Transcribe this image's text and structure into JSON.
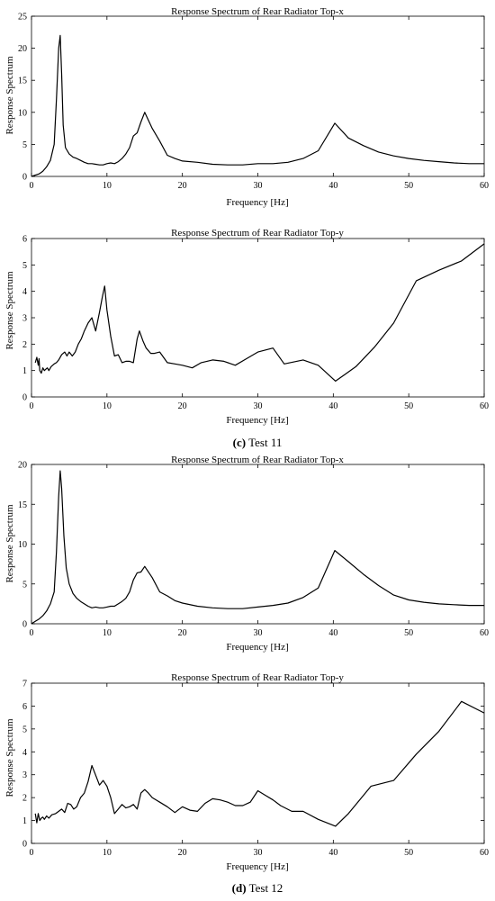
{
  "captions": [
    {
      "label": "(c)",
      "text": " Test 11"
    },
    {
      "label": "(d)",
      "text": " Test 12"
    }
  ],
  "chart_data": [
    {
      "type": "line",
      "title": "Response Spectrum of Rear Radiator Top-x",
      "xlabel": "Frequency [Hz]",
      "ylabel": "Response Spectrum",
      "xlim": [
        0,
        60
      ],
      "ylim": [
        0,
        25
      ],
      "xticks": [
        0,
        10,
        20,
        30,
        40,
        50,
        60
      ],
      "yticks": [
        0,
        5,
        10,
        15,
        20,
        25
      ],
      "grid": false,
      "series": [
        {
          "x": [
            0,
            0.5,
            1,
            1.5,
            2,
            2.5,
            3,
            3.3,
            3.6,
            3.8,
            4.0,
            4.2,
            4.5,
            5,
            5.5,
            6,
            6.5,
            7,
            7.5,
            8,
            8.5,
            9,
            9.5,
            10,
            10.5,
            11,
            11.5,
            12,
            12.5,
            13,
            13.5,
            14,
            14.5,
            15,
            16,
            17,
            18,
            19,
            20,
            22,
            24,
            26,
            28,
            30,
            32,
            34,
            36,
            38,
            40.2,
            42,
            44,
            46,
            48,
            50,
            52,
            54,
            56,
            58,
            60
          ],
          "y": [
            0,
            0.2,
            0.4,
            0.8,
            1.5,
            2.5,
            5,
            12,
            20,
            22,
            16,
            8,
            4.5,
            3.5,
            3,
            2.8,
            2.5,
            2.2,
            2,
            2,
            1.9,
            1.8,
            1.8,
            2,
            2.1,
            2,
            2.3,
            2.8,
            3.5,
            4.5,
            6.3,
            6.8,
            8.5,
            10,
            7.5,
            5.5,
            3.3,
            2.8,
            2.4,
            2.2,
            1.9,
            1.8,
            1.8,
            2,
            2,
            2.2,
            2.8,
            4,
            8.3,
            6,
            4.8,
            3.8,
            3.2,
            2.8,
            2.5,
            2.3,
            2.1,
            2,
            2
          ]
        }
      ]
    },
    {
      "type": "line",
      "title": "Response Spectrum of Rear Radiator Top-y",
      "xlabel": "Frequency [Hz]",
      "ylabel": "Response Spectrum",
      "xlim": [
        0,
        60
      ],
      "ylim": [
        0,
        6
      ],
      "xticks": [
        0,
        10,
        20,
        30,
        40,
        50,
        60
      ],
      "yticks": [
        0,
        1,
        2,
        3,
        4,
        5,
        6
      ],
      "grid": false,
      "series": [
        {
          "x": [
            0.5,
            0.7,
            0.9,
            1.0,
            1.1,
            1.3,
            1.5,
            1.7,
            1.9,
            2.1,
            2.3,
            2.6,
            3.0,
            3.3,
            3.6,
            4.0,
            4.4,
            4.7,
            5.0,
            5.4,
            5.8,
            6.2,
            6.6,
            7.0,
            7.5,
            8.0,
            8.5,
            9.0,
            9.4,
            9.7,
            10.0,
            10.5,
            11,
            11.5,
            12,
            12.5,
            13,
            13.5,
            14.0,
            14.3,
            14.8,
            15.2,
            15.8,
            16.3,
            17,
            18,
            19,
            20,
            21.3,
            22.5,
            24,
            25.5,
            27,
            28.5,
            30,
            32,
            33.5,
            36,
            38,
            40.3,
            43,
            45.5,
            48,
            51,
            54,
            57,
            60
          ],
          "y": [
            1.3,
            1.5,
            1.2,
            1.45,
            1.0,
            0.9,
            1.1,
            1.0,
            1.05,
            1.1,
            1.0,
            1.15,
            1.25,
            1.3,
            1.4,
            1.6,
            1.7,
            1.55,
            1.7,
            1.55,
            1.7,
            2.0,
            2.2,
            2.5,
            2.8,
            3.0,
            2.5,
            3.2,
            3.8,
            4.2,
            3.3,
            2.3,
            1.55,
            1.6,
            1.3,
            1.35,
            1.35,
            1.3,
            2.2,
            2.5,
            2.1,
            1.85,
            1.65,
            1.65,
            1.7,
            1.3,
            1.25,
            1.2,
            1.1,
            1.3,
            1.4,
            1.35,
            1.2,
            1.45,
            1.7,
            1.85,
            1.25,
            1.4,
            1.2,
            0.6,
            1.15,
            1.9,
            2.8,
            4.4,
            4.8,
            5.15,
            5.8
          ]
        }
      ]
    },
    {
      "type": "line",
      "title": "Response Spectrum of Rear Radiator Top-x",
      "xlabel": "Frequency [Hz]",
      "ylabel": "Response Spectrum",
      "xlim": [
        0,
        60
      ],
      "ylim": [
        0,
        20
      ],
      "xticks": [
        0,
        10,
        20,
        30,
        40,
        50,
        60
      ],
      "yticks": [
        0,
        5,
        10,
        15,
        20
      ],
      "grid": false,
      "series": [
        {
          "x": [
            0,
            0.5,
            1,
            1.5,
            2,
            2.5,
            3,
            3.3,
            3.6,
            3.8,
            4.0,
            4.3,
            4.6,
            5,
            5.5,
            6,
            6.5,
            7,
            7.5,
            8,
            8.5,
            9,
            9.5,
            10,
            10.5,
            11,
            11.5,
            12,
            12.5,
            13,
            13.5,
            14,
            14.5,
            15,
            16,
            17,
            18,
            19,
            20,
            22,
            24,
            26,
            28,
            30,
            32,
            34,
            36,
            38,
            40.2,
            42,
            44,
            46,
            48,
            50,
            52,
            54,
            56,
            58,
            60
          ],
          "y": [
            0,
            0.3,
            0.6,
            1.0,
            1.6,
            2.5,
            4,
            9,
            16,
            19.2,
            17,
            11,
            7,
            5,
            3.8,
            3.2,
            2.8,
            2.5,
            2.2,
            2.0,
            2.1,
            2.0,
            2.0,
            2.1,
            2.2,
            2.2,
            2.5,
            2.8,
            3.2,
            4.0,
            5.5,
            6.4,
            6.5,
            7.2,
            5.8,
            4.0,
            3.5,
            2.9,
            2.6,
            2.2,
            2.0,
            1.9,
            1.9,
            2.1,
            2.3,
            2.6,
            3.3,
            4.5,
            9.2,
            7.8,
            6.2,
            4.8,
            3.6,
            3.0,
            2.7,
            2.5,
            2.4,
            2.3,
            2.3
          ]
        }
      ]
    },
    {
      "type": "line",
      "title": "Response Spectrum of Rear Radiator Top-y",
      "xlabel": "Frequency [Hz]",
      "ylabel": "Response Spectrum",
      "xlim": [
        0,
        60
      ],
      "ylim": [
        0,
        7
      ],
      "xticks": [
        0,
        10,
        20,
        30,
        40,
        50,
        60
      ],
      "yticks": [
        0,
        1,
        2,
        3,
        4,
        5,
        6,
        7
      ],
      "grid": false,
      "series": [
        {
          "x": [
            0.5,
            0.7,
            0.9,
            1.1,
            1.3,
            1.5,
            1.7,
            2.0,
            2.3,
            2.7,
            3.2,
            3.6,
            4.0,
            4.4,
            4.8,
            5.2,
            5.6,
            6.0,
            6.5,
            7.0,
            7.5,
            8.0,
            8.6,
            9.0,
            9.5,
            10.0,
            10.5,
            11.0,
            11.5,
            12.0,
            12.5,
            13.0,
            13.5,
            14.0,
            14.5,
            15.0,
            15.5,
            16.0,
            17,
            18,
            19,
            20,
            21,
            22,
            23,
            24,
            25,
            26,
            27,
            28,
            29,
            30,
            31,
            32,
            33,
            34.5,
            36,
            38,
            40.3,
            42,
            45,
            48,
            51,
            54,
            57,
            60
          ],
          "y": [
            1.3,
            0.9,
            1.3,
            1.0,
            1.1,
            1.15,
            1.05,
            1.2,
            1.1,
            1.25,
            1.3,
            1.4,
            1.5,
            1.35,
            1.75,
            1.7,
            1.5,
            1.6,
            2.0,
            2.2,
            2.7,
            3.4,
            2.9,
            2.55,
            2.75,
            2.5,
            2.0,
            1.3,
            1.5,
            1.7,
            1.55,
            1.6,
            1.7,
            1.5,
            2.2,
            2.35,
            2.2,
            2.0,
            1.8,
            1.6,
            1.35,
            1.6,
            1.45,
            1.4,
            1.75,
            1.95,
            1.9,
            1.8,
            1.65,
            1.65,
            1.8,
            2.3,
            2.1,
            1.9,
            1.65,
            1.4,
            1.4,
            1.05,
            0.75,
            1.3,
            2.5,
            2.75,
            3.9,
            4.9,
            6.2,
            5.7
          ]
        }
      ]
    }
  ]
}
